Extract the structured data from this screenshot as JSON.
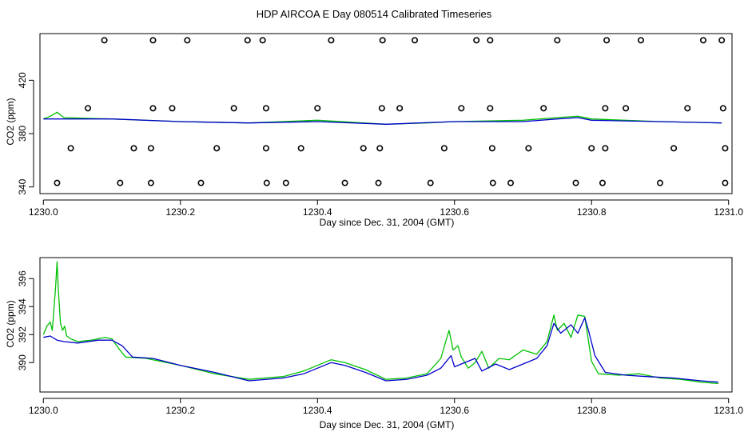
{
  "title": "HDP AIRCOA E  Day 080514  Calibrated Timeseries",
  "colors": {
    "green": "#00c000",
    "blue": "#0000cc",
    "axis": "#000000"
  },
  "chart_data": [
    {
      "type": "line",
      "panel": "top",
      "xlabel": "Day since Dec. 31, 2004 (GMT)",
      "ylabel": "CO2 (ppm)",
      "xlim": [
        1229.995,
        1231.005
      ],
      "ylim": [
        335,
        455
      ],
      "x_ticks": [
        "1230.0",
        "1230.2",
        "1230.4",
        "1230.6",
        "1230.8",
        "1231.0"
      ],
      "y_ticks": [
        "340",
        "380",
        "420"
      ],
      "series": [
        {
          "color": "green",
          "x": [
            1230.0,
            1230.01,
            1230.02,
            1230.03,
            1230.1,
            1230.2,
            1230.3,
            1230.4,
            1230.5,
            1230.56,
            1230.6,
            1230.7,
            1230.75,
            1230.78,
            1230.8,
            1230.9,
            1230.99
          ],
          "y": [
            391,
            393,
            396,
            392,
            391,
            389,
            388,
            390,
            387,
            388,
            389,
            390,
            392,
            393,
            391,
            389,
            388
          ]
        },
        {
          "color": "blue",
          "x": [
            1230.0,
            1230.1,
            1230.2,
            1230.3,
            1230.4,
            1230.5,
            1230.6,
            1230.7,
            1230.75,
            1230.78,
            1230.8,
            1230.9,
            1230.99
          ],
          "y": [
            391,
            391,
            389,
            388,
            389,
            387,
            389,
            389,
            391,
            392,
            390,
            389,
            388
          ]
        },
        {
          "color": "black",
          "marker": "circle",
          "x": [
            1230.089,
            1230.16,
            1230.21,
            1230.298,
            1230.32,
            1230.42,
            1230.495,
            1230.542,
            1230.632,
            1230.652,
            1230.75,
            1230.822,
            1230.872,
            1230.963,
            1230.99,
            1230.065,
            1230.16,
            1230.188,
            1230.278,
            1230.325,
            1230.4,
            1230.494,
            1230.52,
            1230.61,
            1230.652,
            1230.73,
            1230.82,
            1230.85,
            1230.94,
            1230.992,
            1230.04,
            1230.132,
            1230.157,
            1230.253,
            1230.325,
            1230.376,
            1230.467,
            1230.491,
            1230.585,
            1230.655,
            1230.708,
            1230.8,
            1230.82,
            1230.92,
            1230.995,
            1230.02,
            1230.112,
            1230.157,
            1230.23,
            1230.326,
            1230.354,
            1230.44,
            1230.489,
            1230.565,
            1230.656,
            1230.682,
            1230.777,
            1230.816,
            1230.9,
            1230.995
          ],
          "y": [
            450,
            450,
            450,
            450,
            450,
            450,
            450,
            450,
            450,
            450,
            450,
            450,
            450,
            450,
            450,
            399,
            399,
            399,
            399,
            399,
            399,
            399,
            399,
            399,
            399,
            399,
            399,
            399,
            399,
            399,
            369,
            369,
            369,
            369,
            369,
            369,
            369,
            369,
            369,
            369,
            369,
            369,
            369,
            369,
            369,
            343,
            343,
            343,
            343,
            343,
            343,
            343,
            343,
            343,
            343,
            343,
            343,
            343,
            343,
            343
          ]
        }
      ]
    },
    {
      "type": "line",
      "panel": "bottom",
      "xlabel": "Day since Dec. 31, 2004 (GMT)",
      "ylabel": "CO2 (ppm)",
      "xlim": [
        1229.995,
        1231.005
      ],
      "ylim": [
        387.9,
        397.5
      ],
      "x_ticks": [
        "1230.0",
        "1230.2",
        "1230.4",
        "1230.6",
        "1230.8",
        "1231.0"
      ],
      "y_ticks": [
        "390",
        "392",
        "394",
        "396"
      ],
      "series": [
        {
          "color": "green",
          "x": [
            1230.0,
            1230.005,
            1230.01,
            1230.013,
            1230.016,
            1230.018,
            1230.02,
            1230.022,
            1230.025,
            1230.028,
            1230.031,
            1230.034,
            1230.04,
            1230.05,
            1230.07,
            1230.09,
            1230.1,
            1230.11,
            1230.12,
            1230.15,
            1230.2,
            1230.25,
            1230.3,
            1230.35,
            1230.38,
            1230.4,
            1230.42,
            1230.44,
            1230.47,
            1230.5,
            1230.53,
            1230.56,
            1230.58,
            1230.592,
            1230.598,
            1230.605,
            1230.61,
            1230.62,
            1230.63,
            1230.64,
            1230.65,
            1230.665,
            1230.68,
            1230.7,
            1230.72,
            1230.735,
            1230.745,
            1230.75,
            1230.76,
            1230.77,
            1230.78,
            1230.79,
            1230.8,
            1230.81,
            1230.84,
            1230.87,
            1230.9,
            1230.93,
            1230.96,
            1230.985
          ],
          "y": [
            392.0,
            392.6,
            392.9,
            392.3,
            394.2,
            395.5,
            397.2,
            395.0,
            392.8,
            392.3,
            392.6,
            391.9,
            391.7,
            391.5,
            391.6,
            391.8,
            391.7,
            391.0,
            390.4,
            390.3,
            389.8,
            389.2,
            388.8,
            389.0,
            389.4,
            389.8,
            390.2,
            390.0,
            389.5,
            388.8,
            388.9,
            389.2,
            390.3,
            392.3,
            390.9,
            391.2,
            390.4,
            389.6,
            390.0,
            390.8,
            389.6,
            390.3,
            390.2,
            390.9,
            390.6,
            391.5,
            393.4,
            392.3,
            392.8,
            391.8,
            393.4,
            393.3,
            390.1,
            389.2,
            389.1,
            389.2,
            388.9,
            388.8,
            388.6,
            388.5
          ]
        },
        {
          "color": "blue",
          "x": [
            1230.0,
            1230.01,
            1230.02,
            1230.03,
            1230.05,
            1230.08,
            1230.1,
            1230.115,
            1230.13,
            1230.16,
            1230.2,
            1230.25,
            1230.3,
            1230.35,
            1230.38,
            1230.4,
            1230.42,
            1230.44,
            1230.47,
            1230.5,
            1230.53,
            1230.56,
            1230.58,
            1230.595,
            1230.6,
            1230.61,
            1230.63,
            1230.64,
            1230.66,
            1230.68,
            1230.7,
            1230.72,
            1230.735,
            1230.745,
            1230.755,
            1230.77,
            1230.78,
            1230.79,
            1230.795,
            1230.805,
            1230.82,
            1230.85,
            1230.88,
            1230.92,
            1230.96,
            1230.985
          ],
          "y": [
            391.8,
            391.9,
            391.6,
            391.5,
            391.4,
            391.6,
            391.6,
            391.2,
            390.4,
            390.3,
            389.8,
            389.3,
            388.7,
            388.9,
            389.2,
            389.6,
            390.0,
            389.8,
            389.3,
            388.7,
            388.8,
            389.1,
            389.6,
            390.5,
            389.7,
            389.9,
            390.3,
            389.4,
            389.9,
            389.5,
            389.9,
            390.3,
            391.2,
            392.8,
            392.1,
            392.7,
            392.1,
            393.2,
            392.4,
            390.5,
            389.3,
            389.1,
            389.0,
            388.9,
            388.7,
            388.6
          ]
        }
      ]
    }
  ]
}
